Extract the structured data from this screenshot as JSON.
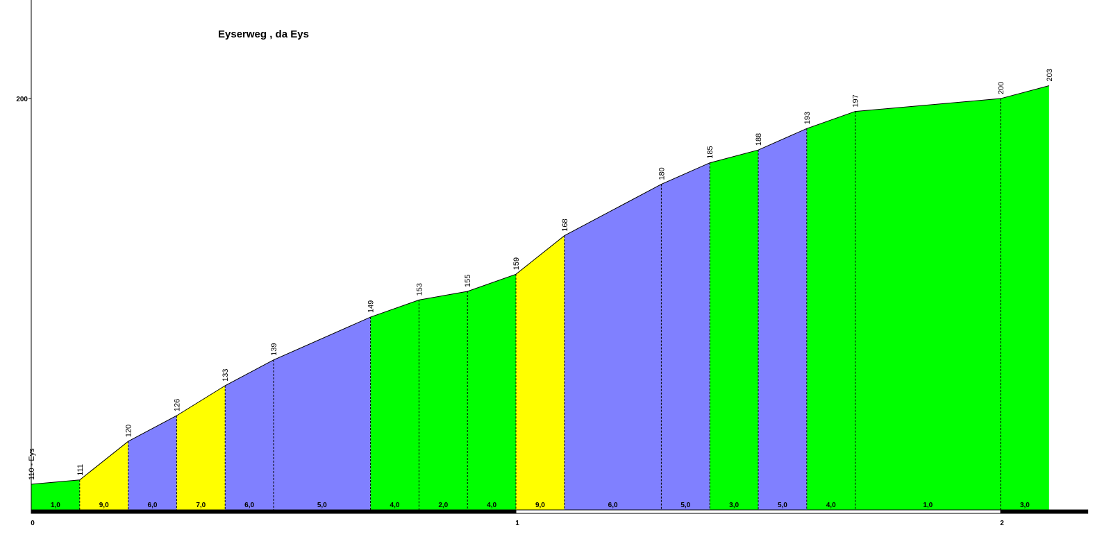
{
  "chart_data": {
    "type": "area",
    "title": "Eyserweg , da Eys",
    "x": [
      0,
      0.1,
      0.2,
      0.3,
      0.4,
      0.5,
      0.7,
      0.8,
      0.9,
      1.0,
      1.1,
      1.3,
      1.4,
      1.5,
      1.6,
      1.7,
      2.0,
      2.1
    ],
    "values": [
      110,
      111,
      120,
      126,
      133,
      139,
      149,
      153,
      155,
      159,
      168,
      180,
      185,
      188,
      193,
      197,
      200,
      203
    ],
    "value_labels": [
      "110 - Eys",
      "111",
      "120",
      "126",
      "133",
      "139",
      "149",
      "153",
      "155",
      "159",
      "168",
      "180",
      "185",
      "188",
      "193",
      "197",
      "200",
      "203"
    ],
    "gradients": [
      1,
      9,
      6,
      7,
      6,
      5,
      4,
      2,
      4,
      9,
      6,
      5,
      3,
      5,
      4,
      1,
      3
    ],
    "gradient_labels": [
      "1,0",
      "9,0",
      "6,0",
      "7,0",
      "6,0",
      "5,0",
      "4,0",
      "2,0",
      "4,0",
      "9,0",
      "6,0",
      "5,0",
      "3,0",
      "5,0",
      "4,0",
      "1,0",
      "3,0"
    ],
    "segment_colors": [
      "#00ff00",
      "#ffff00",
      "#8080ff",
      "#ffff00",
      "#8080ff",
      "#8080ff",
      "#00ff00",
      "#00ff00",
      "#00ff00",
      "#ffff00",
      "#8080ff",
      "#8080ff",
      "#00ff00",
      "#8080ff",
      "#00ff00",
      "#00ff00",
      "#00ff00"
    ],
    "xlim": [
      0,
      2.18
    ],
    "ylim": [
      104,
      223
    ],
    "xticks": [
      0,
      1,
      2
    ],
    "yticks": [
      200
    ]
  }
}
